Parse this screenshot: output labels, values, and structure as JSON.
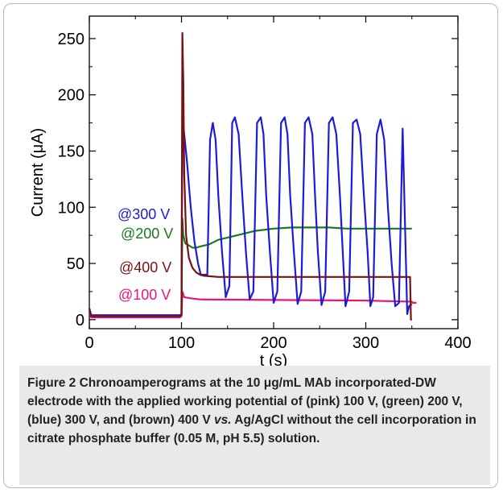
{
  "chart_data": {
    "type": "line",
    "xlabel": "t (s)",
    "ylabel": "Current (μA)",
    "xlim": [
      0,
      400
    ],
    "ylim": [
      -8,
      270
    ],
    "xticks": [
      0,
      100,
      200,
      300,
      400
    ],
    "yticks": [
      0,
      50,
      100,
      150,
      200,
      250
    ],
    "grid": false,
    "legend": "inline-left",
    "series": [
      {
        "name": "@100 V",
        "color": "#e8157c",
        "x": [
          0,
          2,
          98,
          100,
          101,
          103,
          110,
          120,
          200,
          300,
          350,
          351,
          355
        ],
        "y": [
          6,
          2,
          2,
          3,
          25,
          20,
          19,
          18,
          17.5,
          17,
          16,
          15,
          15
        ]
      },
      {
        "name": "@200 V",
        "color": "#1a7a1a",
        "x": [
          0,
          2,
          98,
          100,
          101,
          102,
          104,
          108,
          112,
          116,
          120,
          130,
          140,
          160,
          180,
          200,
          220,
          240,
          260,
          280,
          300,
          320,
          340,
          350
        ],
        "y": [
          10,
          4,
          4,
          4,
          90,
          75,
          68,
          66,
          64,
          64,
          65,
          67,
          71,
          75,
          79,
          81,
          82,
          82,
          82,
          81,
          81,
          81,
          81,
          81
        ]
      },
      {
        "name": "@300 V",
        "color": "#1c1cd6",
        "x": [
          0,
          2,
          98,
          100,
          101,
          103,
          106,
          110,
          114,
          118,
          121,
          124,
          128,
          131,
          134,
          137,
          140,
          144,
          148,
          152,
          155,
          158,
          162,
          166,
          170,
          174,
          178,
          182,
          186,
          189,
          192,
          196,
          200,
          204,
          208,
          212,
          215,
          218,
          222,
          226,
          230,
          234,
          238,
          242,
          245,
          248,
          252,
          256,
          260,
          264,
          268,
          272,
          275,
          278,
          282,
          286,
          290,
          294,
          298,
          302,
          305,
          308,
          312,
          316,
          320,
          324,
          328,
          332,
          336,
          340,
          345,
          347,
          350
        ],
        "y": [
          10,
          4,
          4,
          5,
          180,
          165,
          140,
          100,
          70,
          50,
          40,
          40,
          40,
          160,
          175,
          160,
          110,
          60,
          20,
          30,
          175,
          180,
          165,
          110,
          60,
          18,
          25,
          175,
          180,
          165,
          110,
          60,
          15,
          25,
          175,
          180,
          165,
          110,
          60,
          14,
          25,
          175,
          180,
          165,
          110,
          60,
          13,
          25,
          175,
          180,
          165,
          110,
          60,
          12,
          25,
          175,
          178,
          165,
          110,
          60,
          12,
          20,
          165,
          178,
          160,
          100,
          50,
          12,
          15,
          170,
          5,
          12,
          14
        ]
      },
      {
        "name": "@400 V",
        "color": "#7a1010",
        "x": [
          0,
          2,
          98,
          100,
          101,
          102,
          103,
          105,
          108,
          112,
          116,
          120,
          125,
          140,
          200,
          300,
          348,
          349,
          350
        ],
        "y": [
          8,
          3,
          3,
          4,
          255,
          210,
          130,
          75,
          55,
          46,
          42,
          40,
          39,
          38,
          38,
          38,
          38,
          0,
          0
        ]
      }
    ]
  },
  "caption": {
    "label": "Figure 2",
    "text": " Chronoamperograms at the 10 μg/mL MAb incorporated-DW electrode with the applied working potential of (pink) 100 V, (green) 200 V, (blue) 300 V, and (brown) 400 V ",
    "vs": "vs.",
    "text2": " Ag/AgCl without the cell incorporation in citrate phosphate buffer (0.05 M, pH 5.5) solution."
  }
}
